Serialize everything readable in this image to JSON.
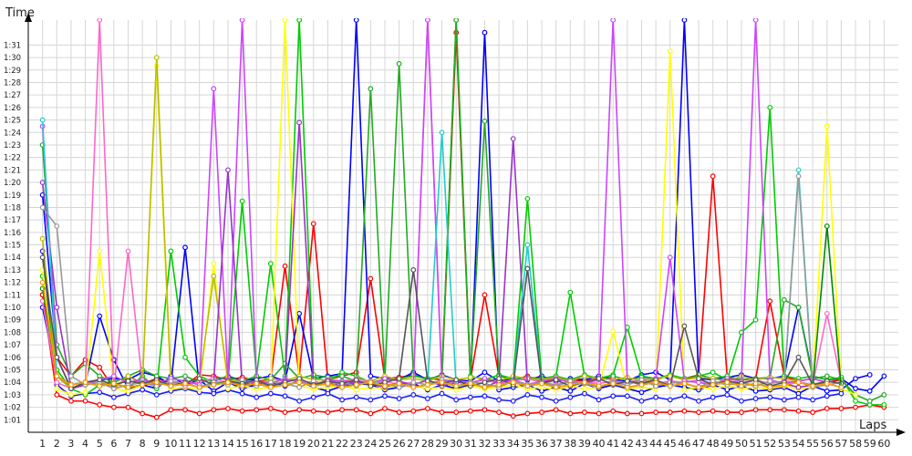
{
  "chart_data": {
    "type": "line",
    "ylabel": "Time",
    "xlabel": "Laps",
    "x": [
      1,
      2,
      3,
      4,
      5,
      6,
      7,
      8,
      9,
      10,
      11,
      12,
      13,
      14,
      15,
      16,
      17,
      18,
      19,
      20,
      21,
      22,
      23,
      24,
      25,
      26,
      27,
      28,
      29,
      30,
      31,
      32,
      33,
      34,
      35,
      36,
      37,
      38,
      39,
      40,
      41,
      42,
      43,
      44,
      45,
      46,
      47,
      48,
      49,
      50,
      51,
      52,
      53,
      54,
      55,
      56,
      57,
      58,
      59,
      60
    ],
    "xlim": [
      0,
      61
    ],
    "ylim": [
      60,
      93
    ],
    "yticks": [
      {
        "v": 61,
        "label": "1:01"
      },
      {
        "v": 62,
        "label": "1:02"
      },
      {
        "v": 63,
        "label": "1:03"
      },
      {
        "v": 64,
        "label": "1:04"
      },
      {
        "v": 65,
        "label": "1:05"
      },
      {
        "v": 66,
        "label": "1:06"
      },
      {
        "v": 67,
        "label": "1:07"
      },
      {
        "v": 68,
        "label": "1:08"
      },
      {
        "v": 69,
        "label": "1:09"
      },
      {
        "v": 70,
        "label": "1:10"
      },
      {
        "v": 71,
        "label": "1:11"
      },
      {
        "v": 72,
        "label": "1:12"
      },
      {
        "v": 73,
        "label": "1:13"
      },
      {
        "v": 74,
        "label": "1:14"
      },
      {
        "v": 75,
        "label": "1:15"
      },
      {
        "v": 76,
        "label": "1:16"
      },
      {
        "v": 77,
        "label": "1:17"
      },
      {
        "v": 78,
        "label": "1:18"
      },
      {
        "v": 79,
        "label": "1:19"
      },
      {
        "v": 80,
        "label": "1:20"
      },
      {
        "v": 81,
        "label": "1:21"
      },
      {
        "v": 82,
        "label": "1:22"
      },
      {
        "v": 83,
        "label": "1:23"
      },
      {
        "v": 84,
        "label": "1:24"
      },
      {
        "v": 85,
        "label": "1:25"
      },
      {
        "v": 86,
        "label": "1:26"
      },
      {
        "v": 87,
        "label": "1:27"
      },
      {
        "v": 88,
        "label": "1:28"
      },
      {
        "v": 89,
        "label": "1:29"
      },
      {
        "v": 90,
        "label": "1:30"
      },
      {
        "v": 91,
        "label": "1:31"
      }
    ],
    "grid": true,
    "series": [
      {
        "color": "#ff0000",
        "values": [
          71,
          63,
          62.5,
          62.5,
          62.2,
          62,
          62,
          61.5,
          61.2,
          61.8,
          61.8,
          61.5,
          61.8,
          61.9,
          61.7,
          61.8,
          61.9,
          61.6,
          61.8,
          61.7,
          61.6,
          61.8,
          61.8,
          61.5,
          61.9,
          61.6,
          61.7,
          61.9,
          61.6,
          61.6,
          61.7,
          61.8,
          61.6,
          61.3,
          61.5,
          61.6,
          61.8,
          61.5,
          61.6,
          61.5,
          61.7,
          61.5,
          61.5,
          61.6,
          61.6,
          61.7,
          61.6,
          61.7,
          61.6,
          61.6,
          61.8,
          61.8,
          61.8,
          61.7,
          61.6,
          61.9,
          61.9,
          62,
          62.2,
          62
        ]
      },
      {
        "color": "#ff0000",
        "values": [
          71,
          66,
          64.5,
          65.8,
          65.2,
          63.5,
          64.5,
          63.9,
          64.3,
          64,
          63.8,
          64.6,
          64.5,
          64.2,
          64.4,
          64.1,
          64.2,
          73.3,
          64.5,
          76.7,
          64.2,
          64.5,
          64.8,
          72.3,
          64.3,
          64.4,
          64.6,
          64.3,
          64.2,
          92,
          64.2,
          71,
          64.5,
          64.2,
          64.5,
          64,
          64.3,
          64.2,
          64.1,
          64.3,
          64.3,
          64,
          64.2,
          64.2,
          64.6,
          64.3,
          64.6,
          80.5,
          64.4,
          64.2,
          64.3,
          70.5,
          64.5,
          64.1,
          64.3,
          64,
          64.2,
          63,
          null,
          null
        ]
      },
      {
        "color": "#0000ff",
        "values": [
          70,
          64.5,
          63.5,
          64,
          64.2,
          64.3,
          64.2,
          64.8,
          64.5,
          63.8,
          74.8,
          63.5,
          64.1,
          64.5,
          64.1,
          64.3,
          64.5,
          64.1,
          69.5,
          64.3,
          64.5,
          64.7,
          93,
          64.5,
          64.3,
          64.2,
          64.8,
          64.2,
          64.6,
          64.2,
          64.1,
          64.8,
          64.1,
          64.3,
          64.2,
          64.5,
          64.1,
          64.3,
          64.2,
          64.5,
          64.2,
          64.1,
          64.6,
          64.8,
          64.2,
          93,
          64.3,
          64.2,
          64.4,
          64.6,
          64.3,
          64.3,
          64.5,
          70,
          64.5,
          64.2,
          64.3,
          63.5,
          63.3,
          64.5
        ]
      },
      {
        "color": "#0000ff",
        "values": [
          79,
          66,
          63.5,
          63.8,
          69.3,
          65.8,
          63.5,
          63.8,
          63.5,
          64.5,
          63.8,
          64.2,
          63.3,
          64,
          63.5,
          63.8,
          64,
          63.7,
          64.1,
          63.6,
          63.3,
          63.7,
          63.9,
          63.8,
          63.4,
          63.6,
          63.9,
          63.4,
          63.8,
          63.5,
          63.8,
          92,
          63.4,
          63.6,
          63.8,
          63.3,
          63.6,
          63.3,
          63.9,
          63.5,
          63.8,
          63.5,
          63.2,
          63.6,
          63.8,
          63.6,
          63.4,
          63.8,
          63.4,
          63.7,
          63.3,
          63.4,
          63.6,
          63.1,
          63.7,
          63.3,
          63.4,
          64.3,
          64.6,
          null
        ]
      },
      {
        "color": "#1a1aff",
        "values": [
          74.5,
          63.8,
          62.9,
          63.1,
          63.2,
          62.8,
          63.1,
          63.4,
          63,
          63.3,
          63.5,
          63.2,
          63.1,
          63.4,
          63.1,
          62.8,
          63.1,
          62.9,
          62.5,
          62.8,
          63.1,
          62.6,
          62.8,
          62.6,
          62.9,
          62.7,
          63,
          62.7,
          63.1,
          62.6,
          62.8,
          62.9,
          62.6,
          62.5,
          63,
          62.8,
          62.5,
          62.8,
          63.1,
          62.6,
          62.9,
          62.9,
          62.5,
          62.8,
          62.6,
          62.9,
          62.5,
          62.8,
          63,
          62.5,
          62.7,
          62.8,
          62.6,
          62.8,
          62.6,
          62.9,
          63.1,
          null,
          null,
          null
        ]
      },
      {
        "color": "#00cc00",
        "values": [
          72.5,
          65,
          63.5,
          63,
          63.8,
          64,
          63.5,
          64.5,
          63.5,
          74.5,
          66,
          64.5,
          64,
          64,
          78.5,
          64.5,
          73.5,
          64.5,
          93,
          64.5,
          64,
          64.8,
          64.5,
          64,
          64.2,
          64.3,
          64.5,
          64.3,
          64.5,
          93,
          64.5,
          64.2,
          64.6,
          64.3,
          78.7,
          64.3,
          64.5,
          71.2,
          64.5,
          64.3,
          64.6,
          68.4,
          64.5,
          64.3,
          64.6,
          64.3,
          64.5,
          64.8,
          64.2,
          68,
          69,
          86,
          64.5,
          64.3,
          64.5,
          64.2,
          64.4,
          62.5,
          62.2,
          62.2
        ]
      },
      {
        "color": "#22aa22",
        "values": [
          83,
          67,
          64.5,
          65.5,
          64.5,
          64,
          64.5,
          65,
          64.5,
          64.3,
          64.5,
          64,
          64.3,
          64.4,
          64.1,
          64.5,
          64.2,
          65.5,
          64.3,
          64.6,
          64.4,
          64.5,
          64.1,
          87.5,
          64.3,
          89.5,
          64.6,
          64.2,
          64.5,
          93,
          64.3,
          84.9,
          64.5,
          64.2,
          64.4,
          64.3,
          64.5,
          64.2,
          64.6,
          64.3,
          64.5,
          64.2,
          64.4,
          64.3,
          64.5,
          64.2,
          64.6,
          64.3,
          64.5,
          64.2,
          64.3,
          64.4,
          70.6,
          70,
          64.3,
          64.5,
          64.2,
          63,
          62.5,
          63
        ]
      },
      {
        "color": "#ffff00",
        "values": [
          73,
          63.5,
          63,
          63.2,
          74.5,
          63.5,
          63.3,
          63.8,
          89.3,
          63.5,
          63.6,
          63.4,
          73.5,
          63.5,
          63.7,
          63.5,
          63.6,
          93,
          63.7,
          63.5,
          63.6,
          63.8,
          63.4,
          63.6,
          63.5,
          63.8,
          63.7,
          63.5,
          63.6,
          63.4,
          63.7,
          63.5,
          63.6,
          63.8,
          63.5,
          63.6,
          63.4,
          63.7,
          63.5,
          63.6,
          68.1,
          63.5,
          63.6,
          63.5,
          90.5,
          63.4,
          63.6,
          63.5,
          63.7,
          63.5,
          63.6,
          63.5,
          63.7,
          63.5,
          63.6,
          84.5,
          63.5,
          63,
          null,
          null
        ]
      },
      {
        "color": "#bbbb00",
        "values": [
          75.5,
          64.5,
          63.5,
          63.8,
          64.2,
          63.5,
          64.5,
          63.8,
          90,
          64,
          63.7,
          64.1,
          72.5,
          64.2,
          64,
          63.8,
          64.3,
          64.1,
          64.5,
          64.2,
          64.2,
          64,
          64.3,
          64.1,
          64.5,
          64.2,
          64.3,
          64.1,
          64.5,
          64.2,
          64.4,
          64.3,
          64.1,
          64.5,
          64.3,
          64.2,
          64.4,
          64.1,
          64.5,
          64.3,
          64.2,
          64.4,
          64.1,
          64.3,
          64.5,
          64.2,
          64.4,
          64.3,
          64.1,
          64.5,
          64.2,
          64.4,
          64.3,
          64.1,
          null,
          null,
          null,
          null,
          null,
          null
        ]
      },
      {
        "color": "#ff66cc",
        "values": [
          70.5,
          64,
          63.5,
          63.8,
          93,
          63.5,
          74.5,
          64,
          63.8,
          64,
          63.7,
          64.1,
          64.3,
          64,
          63.8,
          64.1,
          64,
          64.2,
          64.1,
          64,
          63.8,
          64.1,
          64.3,
          64,
          64.1,
          63.8,
          64,
          93,
          63.9,
          64.1,
          64,
          64.2,
          63.9,
          64.1,
          64.3,
          64,
          63.8,
          64.1,
          64,
          63.9,
          64.1,
          64,
          64.2,
          63.9,
          64.1,
          64,
          64.2,
          63.9,
          64.1,
          64,
          64.2,
          63.9,
          64.1,
          64,
          63.8,
          69.5,
          64,
          null,
          null,
          null
        ]
      },
      {
        "color": "#cc44ff",
        "values": [
          84.5,
          66,
          63.5,
          63.8,
          64.2,
          64.5,
          64,
          64.2,
          63.9,
          64.3,
          64.1,
          63.8,
          87.5,
          64.2,
          93,
          64.1,
          63.9,
          64.3,
          64,
          63.8,
          64.2,
          64.1,
          64,
          63.9,
          64.3,
          64.1,
          63.8,
          93,
          64.2,
          64.1,
          63.9,
          64.3,
          64,
          64.2,
          63.8,
          64.1,
          64.3,
          64,
          63.9,
          64.2,
          93,
          64.1,
          63.8,
          64.3,
          74,
          64.1,
          64,
          63.8,
          64.3,
          64.1,
          93,
          64.2,
          63.9,
          64.1,
          64.3,
          64,
          null,
          null,
          null,
          null
        ]
      },
      {
        "color": "#9933cc",
        "values": [
          80,
          70,
          63.5,
          63.8,
          64,
          63.5,
          63.8,
          64,
          63.7,
          64.1,
          63.9,
          63.6,
          64,
          81,
          63.8,
          64,
          63.7,
          64.1,
          84.8,
          63.8,
          64,
          63.7,
          64.1,
          63.9,
          63.6,
          64,
          63.8,
          64.2,
          63.7,
          64,
          63.9,
          63.6,
          64.1,
          83.5,
          63.8,
          64,
          63.7,
          64.1,
          63.9,
          63.6,
          64,
          63.8,
          64.2,
          63.7,
          64,
          63.9,
          63.6,
          64.1,
          63.8,
          64,
          63.7,
          64.1,
          63.9,
          63.6,
          63.8,
          64,
          null,
          null,
          null,
          null
        ]
      },
      {
        "color": "#22cccc",
        "values": [
          85,
          64.5,
          63.8,
          64,
          63.7,
          63.9,
          63.6,
          63.8,
          64,
          63.7,
          63.9,
          63.6,
          63.8,
          64,
          63.7,
          63.9,
          63.6,
          63.8,
          64,
          63.7,
          63.9,
          63.6,
          63.8,
          64,
          63.7,
          63.9,
          63.6,
          63.8,
          84,
          63.7,
          63.9,
          63.6,
          63.8,
          64,
          75,
          63.9,
          63.6,
          63.8,
          64,
          63.7,
          63.9,
          63.6,
          63.8,
          64,
          63.7,
          63.9,
          63.6,
          63.8,
          64,
          63.7,
          63.9,
          63.6,
          63.8,
          81,
          63.7,
          63.9,
          63.6,
          null,
          null,
          null
        ]
      },
      {
        "color": "#999999",
        "values": [
          78,
          76.5,
          64.5,
          63.8,
          64,
          63.5,
          63.8,
          64,
          63.7,
          64.1,
          63.9,
          63.6,
          64,
          63.8,
          64.2,
          63.7,
          64,
          63.9,
          63.6,
          64.1,
          63.8,
          64,
          63.7,
          64.1,
          63.9,
          63.6,
          64,
          63.8,
          64.2,
          63.7,
          64,
          63.9,
          63.6,
          64.1,
          63.8,
          64,
          63.7,
          64.1,
          63.9,
          63.6,
          64,
          63.8,
          64.2,
          63.7,
          64,
          63.9,
          63.6,
          64.1,
          63.8,
          64,
          63.7,
          64.1,
          63.9,
          80.5,
          63.6,
          63.8,
          64,
          null,
          null,
          null
        ]
      },
      {
        "color": "#555555",
        "values": [
          74,
          66,
          63.5,
          64,
          64.2,
          63.8,
          64.1,
          63.9,
          64.2,
          63.7,
          64,
          64.3,
          63.8,
          64.1,
          63.9,
          64.2,
          63.7,
          64,
          64.3,
          63.8,
          64.1,
          63.9,
          64.2,
          63.7,
          64,
          64.3,
          73,
          64.1,
          63.9,
          64.2,
          63.7,
          64,
          64.3,
          63.8,
          73.1,
          63.9,
          64.2,
          63.7,
          64,
          64.3,
          63.8,
          64.1,
          63.9,
          64.2,
          63.7,
          68.5,
          64.3,
          63.8,
          64.1,
          63.9,
          64.2,
          63.7,
          64,
          66,
          63.8,
          64.1,
          63.9,
          null,
          null,
          null
        ]
      },
      {
        "color": "#008800",
        "values": [
          71.5,
          64.5,
          63.8,
          64,
          63.7,
          63.9,
          63.6,
          63.8,
          64,
          63.7,
          63.9,
          63.6,
          63.8,
          64,
          63.7,
          63.9,
          63.6,
          63.8,
          64,
          63.7,
          63.9,
          63.6,
          63.8,
          64,
          63.7,
          63.9,
          63.6,
          63.8,
          64,
          63.7,
          63.9,
          63.6,
          63.8,
          64,
          63.7,
          63.9,
          63.6,
          63.8,
          64,
          63.7,
          63.9,
          63.6,
          63.8,
          64,
          63.7,
          63.9,
          63.6,
          63.8,
          64,
          63.7,
          63.9,
          63.6,
          63.8,
          64,
          63.7,
          76.5,
          63.6,
          null,
          null,
          null
        ]
      },
      {
        "color": "#ff9900",
        "values": [
          72,
          64.5,
          63.8,
          64,
          63.7,
          63.9,
          63.6,
          63.8,
          64,
          63.7,
          63.9,
          63.6,
          63.8,
          64,
          63.7,
          63.9,
          63.6,
          63.8,
          64,
          63.7,
          63.9,
          63.6,
          63.8,
          64,
          63.7,
          63.9,
          63.6,
          63.8,
          64,
          63.7,
          63.9,
          63.6,
          63.8,
          64,
          63.7,
          63.9,
          63.6,
          63.8,
          64,
          63.7,
          63.9,
          63.6,
          63.8,
          64,
          63.7,
          63.9,
          63.6,
          63.8,
          64,
          63.7,
          63.9,
          63.6,
          63.8,
          64,
          63.7,
          63.9,
          63.6,
          null,
          null,
          null
        ]
      }
    ]
  }
}
